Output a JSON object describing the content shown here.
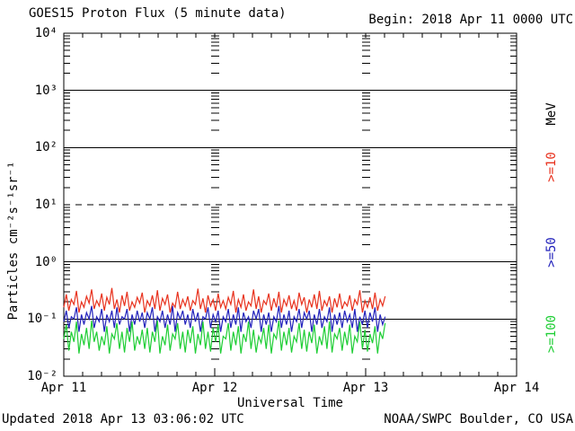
{
  "header": {
    "title": "GOES15 Proton Flux (5 minute data)",
    "begin_label": "Begin: 2018 Apr 11 0000 UTC"
  },
  "footer": {
    "updated": "Updated 2018 Apr 13 03:06:02 UTC",
    "source": "NOAA/SWPC Boulder, CO USA"
  },
  "axes": {
    "y": {
      "label": "Particles cm⁻²s⁻¹sr⁻¹",
      "ticks": [
        "10⁴",
        "10³",
        "10²",
        "10¹",
        "10⁰",
        "10⁻¹",
        "10⁻²"
      ]
    },
    "x": {
      "label": "Universal Time",
      "ticks": [
        "Apr 11",
        "Apr 12",
        "Apr 13",
        "Apr 14"
      ]
    }
  },
  "legend": {
    "unit": "MeV",
    "items": [
      {
        "label": ">=10",
        "color": "#e8321e"
      },
      {
        "label": ">=50",
        "color": "#2222bb"
      },
      {
        "label": ">=100",
        "color": "#1fce35"
      }
    ]
  },
  "chart_data": {
    "type": "line",
    "title": "GOES15 Proton Flux (5 minute data)",
    "xlabel": "Universal Time",
    "ylabel": "Particles cm⁻²s⁻¹sr⁻¹",
    "y_scale": "log",
    "ylim": [
      0.01,
      10000
    ],
    "x_axis_start": "2018 Apr 11 0000 UTC",
    "x_axis_end": "2018 Apr 14 0000 UTC",
    "data_end": "2018 Apr 13 ~0305 UTC",
    "total_hours": 72,
    "data_hours": 51.1,
    "x_day_ticks": [
      "Apr 11",
      "Apr 12",
      "Apr 13",
      "Apr 14"
    ],
    "minor_tick_hours": 3,
    "gridlines": {
      "solid_exponents": [
        3,
        2,
        0,
        -1
      ],
      "dashed_exponents": [
        1
      ]
    },
    "series": [
      {
        "name": ">=10 MeV",
        "color": "#e8321e",
        "typical_flux": 0.17,
        "values": [
          0.16,
          0.27,
          0.14,
          0.22,
          0.18,
          0.31,
          0.13,
          0.2,
          0.16,
          0.25,
          0.19,
          0.33,
          0.15,
          0.21,
          0.17,
          0.28,
          0.14,
          0.24,
          0.18,
          0.35,
          0.15,
          0.22,
          0.13,
          0.26,
          0.17,
          0.3,
          0.14,
          0.2,
          0.16,
          0.24,
          0.19,
          0.29,
          0.13,
          0.21,
          0.17,
          0.26,
          0.15,
          0.32,
          0.14,
          0.23,
          0.18,
          0.27,
          0.13,
          0.19,
          0.16,
          0.3,
          0.15,
          0.22,
          0.17,
          0.25,
          0.14,
          0.21,
          0.18,
          0.34,
          0.15,
          0.23,
          0.13,
          0.26,
          0.17,
          0.22,
          0.14,
          0.28,
          0.16,
          0.21,
          0.15,
          0.24,
          0.18,
          0.31,
          0.13,
          0.22,
          0.16,
          0.27,
          0.14,
          0.2,
          0.17,
          0.33,
          0.15,
          0.25,
          0.13,
          0.21,
          0.18,
          0.28,
          0.14,
          0.23,
          0.16,
          0.3,
          0.13,
          0.22,
          0.17,
          0.26,
          0.15,
          0.21,
          0.14,
          0.29,
          0.18,
          0.24,
          0.13,
          0.22,
          0.16,
          0.27,
          0.15,
          0.31,
          0.14,
          0.21,
          0.17,
          0.25,
          0.13,
          0.23,
          0.16,
          0.28,
          0.15,
          0.2,
          0.17,
          0.26,
          0.14,
          0.22,
          0.18,
          0.32,
          0.13,
          0.21,
          0.16,
          0.24,
          0.15,
          0.29,
          0.14,
          0.22,
          0.17,
          0.25
        ]
      },
      {
        "name": ">=50 MeV",
        "color": "#2222bb",
        "typical_flux": 0.1,
        "values": [
          0.09,
          0.14,
          0.07,
          0.11,
          0.1,
          0.16,
          0.06,
          0.12,
          0.08,
          0.13,
          0.1,
          0.17,
          0.07,
          0.11,
          0.09,
          0.15,
          0.06,
          0.12,
          0.09,
          0.14,
          0.07,
          0.16,
          0.08,
          0.11,
          0.1,
          0.15,
          0.06,
          0.12,
          0.08,
          0.14,
          0.09,
          0.13,
          0.07,
          0.13,
          0.1,
          0.16,
          0.06,
          0.11,
          0.09,
          0.14,
          0.07,
          0.12,
          0.08,
          0.17,
          0.06,
          0.13,
          0.1,
          0.14,
          0.08,
          0.12,
          0.07,
          0.15,
          0.09,
          0.13,
          0.06,
          0.11,
          0.1,
          0.16,
          0.07,
          0.12,
          0.09,
          0.14,
          0.06,
          0.11,
          0.09,
          0.15,
          0.07,
          0.12,
          0.08,
          0.16,
          0.06,
          0.13,
          0.09,
          0.11,
          0.07,
          0.14,
          0.1,
          0.15,
          0.06,
          0.12,
          0.08,
          0.13,
          0.06,
          0.11,
          0.09,
          0.17,
          0.07,
          0.12,
          0.08,
          0.14,
          0.06,
          0.11,
          0.09,
          0.15,
          0.07,
          0.13,
          0.1,
          0.14,
          0.06,
          0.12,
          0.08,
          0.15,
          0.07,
          0.11,
          0.09,
          0.16,
          0.06,
          0.12,
          0.08,
          0.13,
          0.07,
          0.14,
          0.09,
          0.12,
          0.07,
          0.15,
          0.06,
          0.11,
          0.08,
          0.14,
          0.07,
          0.13,
          0.09,
          0.16,
          0.06,
          0.12,
          0.08,
          0.11
        ]
      },
      {
        "name": ">=100 MeV",
        "color": "#1fce35",
        "typical_flux": 0.05,
        "values": [
          0.045,
          0.08,
          0.028,
          0.06,
          0.04,
          0.09,
          0.025,
          0.055,
          0.035,
          0.07,
          0.03,
          0.095,
          0.04,
          0.06,
          0.028,
          0.05,
          0.035,
          0.075,
          0.025,
          0.055,
          0.045,
          0.085,
          0.03,
          0.06,
          0.026,
          0.07,
          0.04,
          0.09,
          0.028,
          0.05,
          0.036,
          0.065,
          0.03,
          0.07,
          0.026,
          0.06,
          0.04,
          0.095,
          0.025,
          0.05,
          0.035,
          0.08,
          0.028,
          0.055,
          0.045,
          0.085,
          0.03,
          0.06,
          0.026,
          0.065,
          0.038,
          0.075,
          0.025,
          0.055,
          0.035,
          0.09,
          0.03,
          0.06,
          0.027,
          0.07,
          0.04,
          0.08,
          0.025,
          0.05,
          0.045,
          0.085,
          0.028,
          0.06,
          0.035,
          0.075,
          0.025,
          0.055,
          0.04,
          0.09,
          0.03,
          0.065,
          0.026,
          0.05,
          0.038,
          0.07,
          0.03,
          0.08,
          0.025,
          0.055,
          0.045,
          0.095,
          0.028,
          0.06,
          0.035,
          0.07,
          0.026,
          0.05,
          0.04,
          0.085,
          0.03,
          0.065,
          0.027,
          0.06,
          0.038,
          0.08,
          0.025,
          0.05,
          0.035,
          0.075,
          0.03,
          0.09,
          0.026,
          0.055,
          0.045,
          0.07,
          0.028,
          0.06,
          0.035,
          0.08,
          0.025,
          0.05,
          0.04,
          0.09,
          0.03,
          0.065,
          0.027,
          0.055,
          0.038,
          0.075,
          0.025,
          0.06,
          0.045,
          0.085
        ]
      }
    ]
  }
}
